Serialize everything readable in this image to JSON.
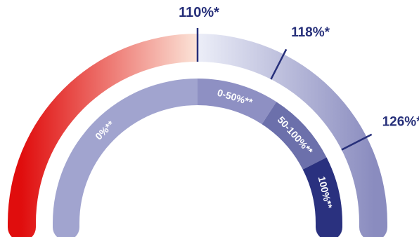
{
  "gauge": {
    "outer_thresholds": [
      {
        "label": "110%*",
        "angle": 90
      },
      {
        "label": "118%*",
        "angle": 63
      },
      {
        "label": "126%*",
        "angle": 27
      }
    ],
    "inner_segments": [
      {
        "label": "0%**",
        "from": 180,
        "to": 90,
        "color": "#a1a4cf"
      },
      {
        "label": "0-50%**",
        "from": 90,
        "to": 57,
        "color": "#8e90c3"
      },
      {
        "label": "50-100%**",
        "from": 57,
        "to": 27,
        "color": "#6c70ab"
      },
      {
        "label": "100%**",
        "from": 27,
        "to": 0,
        "color": "#2a317f"
      }
    ],
    "colors": {
      "outer_red": "#e00d0d",
      "outer_light": "#fbe4d8",
      "outer_blue_light": "#eceef8",
      "outer_blue_dark": "#8a8cbf",
      "accent": "#27307a"
    }
  }
}
